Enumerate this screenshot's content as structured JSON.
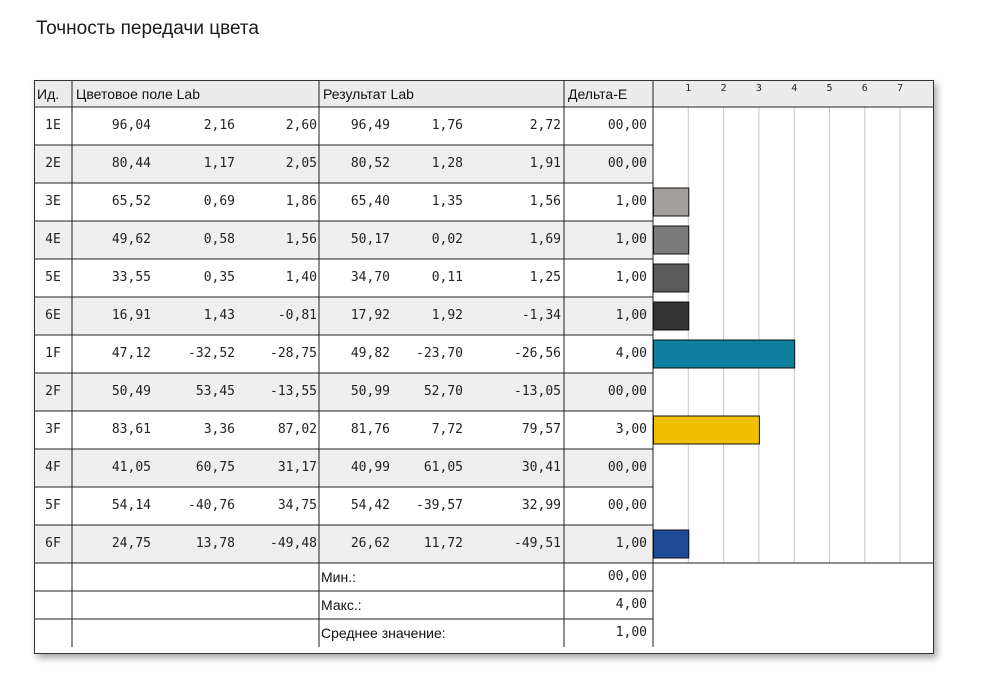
{
  "title": "Точность передачи цвета",
  "table": {
    "headers": {
      "id": "Ид.",
      "target": "Цветовое поле Lab",
      "result": "Результат Lab",
      "delta": "Дельта-E"
    },
    "rows": [
      {
        "id": "1E",
        "target": [
          "96,04",
          "2,16",
          "2,60"
        ],
        "result": [
          "96,49",
          "1,76",
          "2,72"
        ],
        "delta": "00,00"
      },
      {
        "id": "2E",
        "target": [
          "80,44",
          "1,17",
          "2,05"
        ],
        "result": [
          "80,52",
          "1,28",
          "1,91"
        ],
        "delta": "00,00"
      },
      {
        "id": "3E",
        "target": [
          "65,52",
          "0,69",
          "1,86"
        ],
        "result": [
          "65,40",
          "1,35",
          "1,56"
        ],
        "delta": "1,00"
      },
      {
        "id": "4E",
        "target": [
          "49,62",
          "0,58",
          "1,56"
        ],
        "result": [
          "50,17",
          "0,02",
          "1,69"
        ],
        "delta": "1,00"
      },
      {
        "id": "5E",
        "target": [
          "33,55",
          "0,35",
          "1,40"
        ],
        "result": [
          "34,70",
          "0,11",
          "1,25"
        ],
        "delta": "1,00"
      },
      {
        "id": "6E",
        "target": [
          "16,91",
          "1,43",
          "-0,81"
        ],
        "result": [
          "17,92",
          "1,92",
          "-1,34"
        ],
        "delta": "1,00"
      },
      {
        "id": "1F",
        "target": [
          "47,12",
          "-32,52",
          "-28,75"
        ],
        "result": [
          "49,82",
          "-23,70",
          "-26,56"
        ],
        "delta": "4,00"
      },
      {
        "id": "2F",
        "target": [
          "50,49",
          "53,45",
          "-13,55"
        ],
        "result": [
          "50,99",
          "52,70",
          "-13,05"
        ],
        "delta": "00,00"
      },
      {
        "id": "3F",
        "target": [
          "83,61",
          "3,36",
          "87,02"
        ],
        "result": [
          "81,76",
          "7,72",
          "79,57"
        ],
        "delta": "3,00"
      },
      {
        "id": "4F",
        "target": [
          "41,05",
          "60,75",
          "31,17"
        ],
        "result": [
          "40,99",
          "61,05",
          "30,41"
        ],
        "delta": "00,00"
      },
      {
        "id": "5F",
        "target": [
          "54,14",
          "-40,76",
          "34,75"
        ],
        "result": [
          "54,42",
          "-39,57",
          "32,99"
        ],
        "delta": "00,00"
      },
      {
        "id": "6F",
        "target": [
          "24,75",
          "13,78",
          "-49,48"
        ],
        "result": [
          "26,62",
          "11,72",
          "-49,51"
        ],
        "delta": "1,00"
      }
    ],
    "summary": [
      {
        "label": "Мин.:",
        "value": "00,00"
      },
      {
        "label": "Макс.:",
        "value": "4,00"
      },
      {
        "label": "Среднее значение:",
        "value": "1,00"
      }
    ]
  },
  "chart_data": {
    "type": "bar",
    "orientation": "horizontal",
    "categories": [
      "1E",
      "2E",
      "3E",
      "4E",
      "5E",
      "6E",
      "1F",
      "2F",
      "3F",
      "4F",
      "5F",
      "6F"
    ],
    "values": [
      0,
      0,
      1,
      1,
      1,
      1,
      4,
      0,
      3,
      0,
      0,
      1
    ],
    "bar_colors": [
      "#a8a8a8",
      "#a8a8a8",
      "#a19e9b",
      "#7a7a7a",
      "#5a5a5a",
      "#333333",
      "#0e7f9e",
      "#b4b4b4",
      "#f0c000",
      "#b4b4b4",
      "#b4b4b4",
      "#1f4a96"
    ],
    "x_ticks": [
      "1",
      "2",
      "3",
      "4",
      "5",
      "6",
      "7"
    ],
    "xlim": [
      0,
      8
    ],
    "grid": true
  }
}
